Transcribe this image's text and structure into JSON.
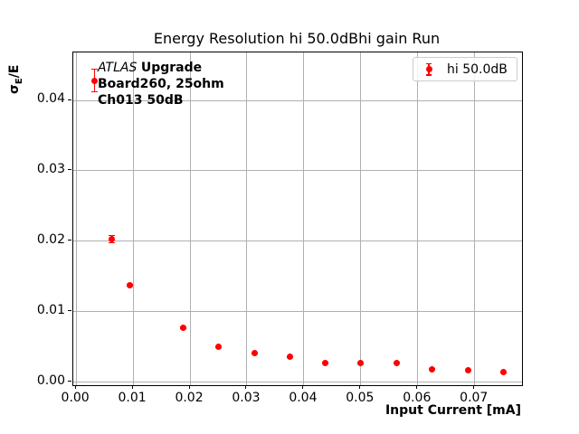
{
  "chart_data": {
    "type": "scatter",
    "title": "Energy Resolution hi 50.0dBhi gain Run",
    "xlabel": "Input Current [mA]",
    "ylabel": "σ_E/E",
    "xlim": [
      -0.0005,
      0.0783
    ],
    "ylim": [
      -0.0004,
      0.0468
    ],
    "grid": true,
    "legend_position": "upper right",
    "xticks": [
      {
        "v": 0.0,
        "label": "0.00"
      },
      {
        "v": 0.01,
        "label": "0.01"
      },
      {
        "v": 0.02,
        "label": "0.02"
      },
      {
        "v": 0.03,
        "label": "0.03"
      },
      {
        "v": 0.04,
        "label": "0.04"
      },
      {
        "v": 0.05,
        "label": "0.05"
      },
      {
        "v": 0.06,
        "label": "0.06"
      },
      {
        "v": 0.07,
        "label": "0.07"
      }
    ],
    "yticks": [
      {
        "v": 0.0,
        "label": "0.00"
      },
      {
        "v": 0.01,
        "label": "0.01"
      },
      {
        "v": 0.02,
        "label": "0.02"
      },
      {
        "v": 0.03,
        "label": "0.03"
      },
      {
        "v": 0.04,
        "label": "0.04"
      }
    ],
    "series": [
      {
        "name": "hi 50.0dB",
        "color": "#ff0000",
        "marker": "circle-with-errorbar",
        "points": [
          {
            "x": 0.0032,
            "y": 0.0428,
            "yerr": 0.0017
          },
          {
            "x": 0.0063,
            "y": 0.0203,
            "yerr": 0.0006
          },
          {
            "x": 0.0094,
            "y": 0.0138,
            "yerr": 0.0002
          },
          {
            "x": 0.0188,
            "y": 0.0078,
            "yerr": 0.0002
          },
          {
            "x": 0.025,
            "y": 0.005,
            "yerr": 0.0001
          },
          {
            "x": 0.0313,
            "y": 0.0041,
            "yerr": 0.0001
          },
          {
            "x": 0.0375,
            "y": 0.0036,
            "yerr": 0.0001
          },
          {
            "x": 0.0438,
            "y": 0.0028,
            "yerr": 0.0001
          },
          {
            "x": 0.05,
            "y": 0.0027,
            "yerr": 0.0001
          },
          {
            "x": 0.0563,
            "y": 0.0028,
            "yerr": 0.0001
          },
          {
            "x": 0.0625,
            "y": 0.0019,
            "yerr": 0.0001
          },
          {
            "x": 0.0688,
            "y": 0.0017,
            "yerr": 0.0001
          },
          {
            "x": 0.075,
            "y": 0.0014,
            "yerr": 0.0001
          }
        ]
      }
    ]
  },
  "ylabel_parts": {
    "sigma": "σ",
    "sub": "E",
    "suffix": "/E"
  },
  "annotation": {
    "atlas": "ATLAS",
    "upgrade": "Upgrade",
    "line2": "Board260, 25ohm",
    "line3": "Ch013 50dB"
  },
  "legend": {
    "label": "hi 50.0dB"
  },
  "colors": {
    "marker": "#ff0000",
    "grid": "#b0b0b0",
    "spine": "#000000",
    "legend_border": "#cccccc"
  }
}
